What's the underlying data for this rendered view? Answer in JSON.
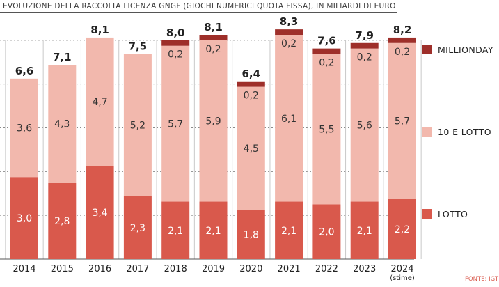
{
  "chart_data": {
    "type": "bar",
    "stacked": true,
    "title": "EVOLUZIONE DELLA RACCOLTA LICENZA GNGF (GIOCHI NUMERICI QUOTA FISSA), IN MILIARDI DI EURO",
    "categories": [
      "2014",
      "2015",
      "2016",
      "2017",
      "2018",
      "2019",
      "2020",
      "2021",
      "2022",
      "2023",
      "2024"
    ],
    "category_notes": [
      "",
      "",
      "",
      "",
      "",
      "",
      "",
      "",
      "",
      "",
      "(stime)"
    ],
    "totals": [
      6.6,
      7.1,
      8.1,
      7.5,
      8.0,
      8.1,
      6.4,
      8.3,
      7.6,
      7.9,
      8.2
    ],
    "series": [
      {
        "name": "LOTTO",
        "color": "#d9594c",
        "values": [
          3.0,
          2.8,
          3.4,
          2.3,
          2.1,
          2.1,
          1.8,
          2.1,
          2.0,
          2.1,
          2.2
        ]
      },
      {
        "name": "10 E LOTTO",
        "color": "#f2b8ad",
        "values": [
          3.6,
          4.3,
          4.7,
          5.2,
          5.7,
          5.9,
          4.5,
          6.1,
          5.5,
          5.6,
          5.7
        ]
      },
      {
        "name": "MILLIONDAY",
        "color": "#9e2f2a",
        "values": [
          0,
          0,
          0,
          0,
          0.2,
          0.2,
          0.2,
          0.2,
          0.2,
          0.2,
          0.2
        ]
      }
    ],
    "ylim": [
      0,
      8.6
    ],
    "grid": true,
    "legend": "right"
  },
  "source": "FONTE: IGT"
}
